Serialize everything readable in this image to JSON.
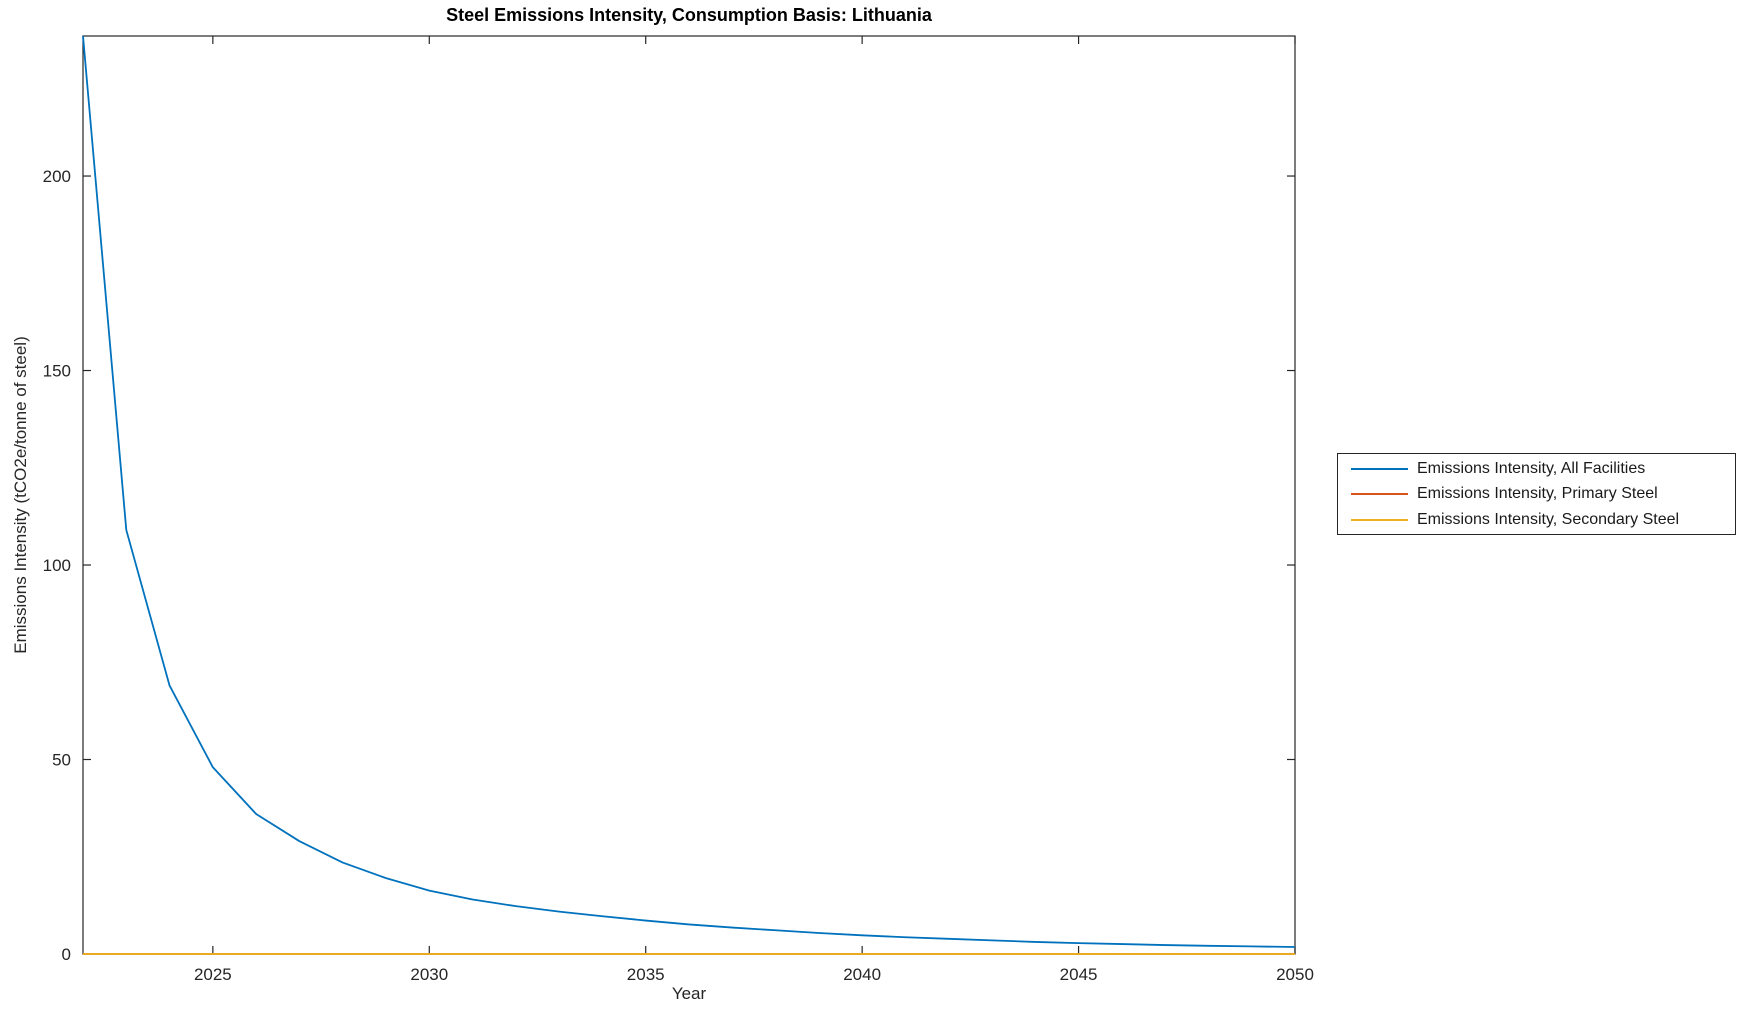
{
  "figure": {
    "title": "Steel Emissions Intensity, Consumption Basis: Lithuania",
    "xlabel": "Year",
    "ylabel": "Emissions Intensity (tCO2e/tonne of steel)"
  },
  "chart_data": {
    "type": "line",
    "title": "Steel Emissions Intensity, Consumption Basis: Lithuania",
    "xlabel": "Year",
    "ylabel": "Emissions Intensity (tCO2e/tonne of steel)",
    "x": [
      2022,
      2023,
      2024,
      2025,
      2026,
      2027,
      2028,
      2029,
      2030,
      2031,
      2032,
      2033,
      2034,
      2035,
      2036,
      2037,
      2038,
      2039,
      2040,
      2041,
      2042,
      2043,
      2044,
      2045,
      2046,
      2047,
      2048,
      2049,
      2050
    ],
    "series": [
      {
        "name": "Emissions Intensity, All Facilities",
        "color": "#0072BD",
        "values": [
          236,
          109,
          69,
          48,
          36,
          29,
          23.5,
          19.5,
          16.3,
          14.0,
          12.3,
          10.9,
          9.7,
          8.6,
          7.6,
          6.8,
          6.1,
          5.4,
          4.8,
          4.3,
          3.9,
          3.5,
          3.1,
          2.8,
          2.55,
          2.3,
          2.1,
          1.95,
          1.8
        ]
      },
      {
        "name": "Emissions Intensity, Primary Steel",
        "color": "#D95319",
        "values": [
          0,
          0,
          0,
          0,
          0,
          0,
          0,
          0,
          0,
          0,
          0,
          0,
          0,
          0,
          0,
          0,
          0,
          0,
          0,
          0,
          0,
          0,
          0,
          0,
          0,
          0,
          0,
          0,
          0
        ]
      },
      {
        "name": "Emissions Intensity, Secondary Steel",
        "color": "#EDB120",
        "values": [
          0,
          0,
          0,
          0,
          0,
          0,
          0,
          0,
          0,
          0,
          0,
          0,
          0,
          0,
          0,
          0,
          0,
          0,
          0,
          0,
          0,
          0,
          0,
          0,
          0,
          0,
          0,
          0,
          0
        ]
      }
    ],
    "xlim": [
      2022,
      2050
    ],
    "ylim": [
      0,
      236
    ],
    "xticks": [
      2025,
      2030,
      2035,
      2040,
      2045,
      2050
    ],
    "yticks": [
      0,
      50,
      100,
      150,
      200
    ],
    "grid": false,
    "legend_position": "outside-right",
    "axis_color": "#262626",
    "background": "#ffffff"
  }
}
